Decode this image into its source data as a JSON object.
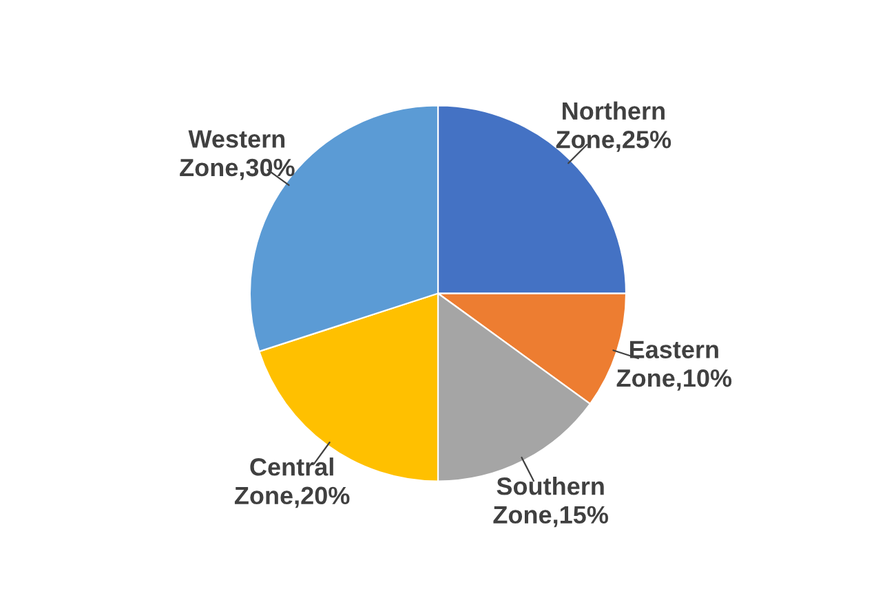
{
  "chart_data": {
    "type": "pie",
    "categories": [
      "Northern Zone",
      "Eastern Zone",
      "Southern Zone",
      "Central Zone",
      "Western Zone"
    ],
    "values": [
      25,
      10,
      15,
      20,
      30
    ],
    "value_labels": [
      "25%",
      "10%",
      "15%",
      "20%",
      "30%"
    ],
    "colors": [
      "#4472c4",
      "#ed7d31",
      "#a5a5a5",
      "#ffc000",
      "#5b9bd5"
    ],
    "legend": false
  }
}
